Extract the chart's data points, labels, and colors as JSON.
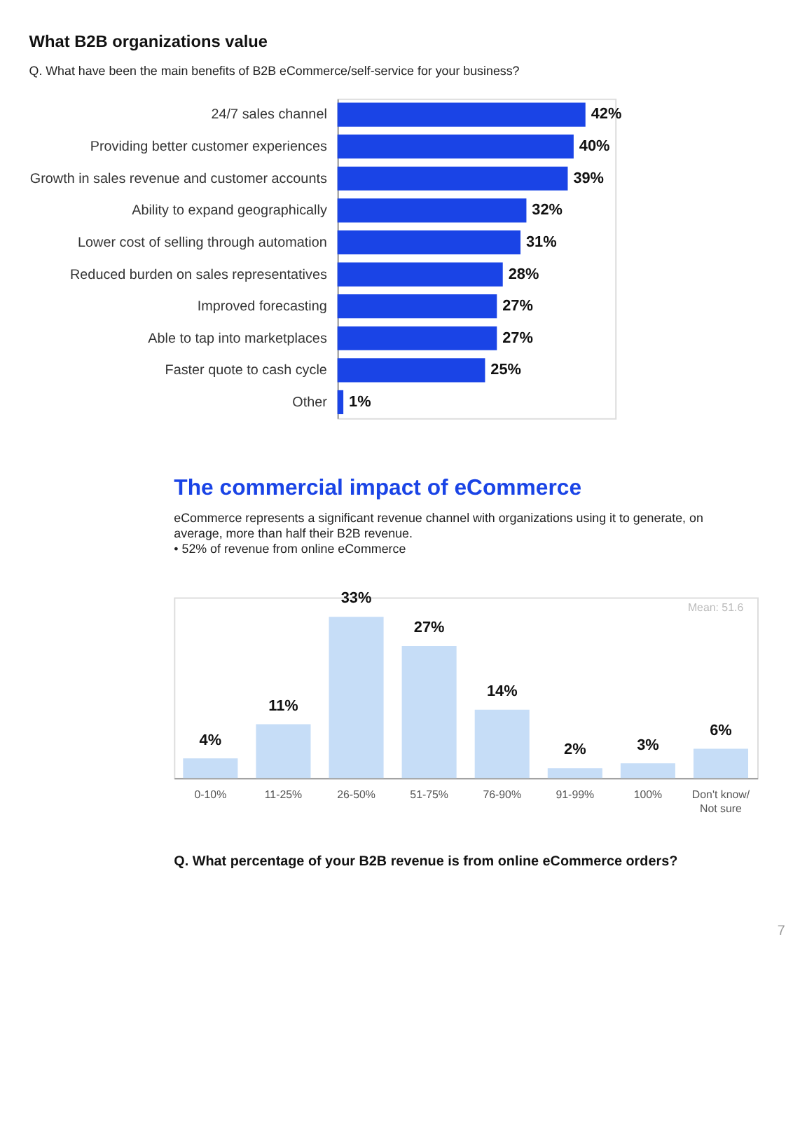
{
  "chart_data": [
    {
      "type": "bar",
      "orientation": "horizontal",
      "title": "What B2B organizations value",
      "subtitle": "Q. What have been the main benefits of B2B eCommerce/self-service for your business?",
      "categories": [
        "24/7 sales channel",
        "Providing better customer experiences",
        "Growth in sales revenue and customer accounts",
        "Ability to expand geographically",
        "Lower cost of selling through automation",
        "Reduced burden on sales representatives",
        "Improved forecasting",
        "Able to tap into marketplaces",
        "Faster quote to cash cycle",
        "Other"
      ],
      "values": [
        42,
        40,
        39,
        32,
        31,
        28,
        27,
        27,
        25,
        1
      ],
      "value_labels": [
        "42%",
        "40%",
        "39%",
        "32%",
        "31%",
        "28%",
        "27%",
        "27%",
        "25%",
        "1%"
      ],
      "color": "#1a44e6"
    },
    {
      "type": "bar",
      "title": "The commercial impact of eCommerce",
      "subtitle": "eCommerce represents a significant revenue channel with organizations using it to generate, on average, more than half their B2B revenue.",
      "categories": [
        "0-10%",
        "11-25%",
        "26-50%",
        "51-75%",
        "76-90%",
        "91-99%",
        "100%",
        "Don't know/\nNot sure"
      ],
      "values": [
        4,
        11,
        33,
        27,
        14,
        2,
        3,
        6
      ],
      "value_labels": [
        "4%",
        "11%",
        "33%",
        "27%",
        "14%",
        "2%",
        "3%",
        "6%"
      ],
      "color": "#c6ddf7",
      "annotations": [
        "•  52% of revenue from online eCommerce",
        "Mean: 51.6",
        "Q. What percentage of your B2B revenue is from online eCommerce orders?",
        "7"
      ]
    }
  ]
}
